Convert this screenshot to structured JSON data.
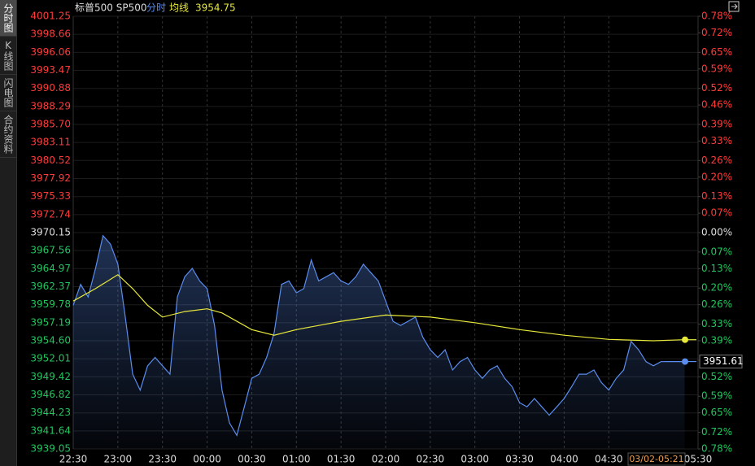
{
  "sidebar": {
    "tabs": [
      "分时图",
      "K线图",
      "闪电图",
      "合约资料"
    ]
  },
  "chart_data": {
    "type": "line",
    "title": "标普500 SP500",
    "ma_value": 3954.75,
    "date_label": "03/02-05:21",
    "xlim": [
      "22:30",
      "05:30"
    ],
    "xticks": [
      "22:30",
      "23:00",
      "23:30",
      "00:00",
      "00:30",
      "01:00",
      "01:30",
      "02:00",
      "02:30",
      "03:00",
      "03:30",
      "04:00",
      "04:30",
      "05:30"
    ],
    "ylim": [
      3939.05,
      4001.25
    ],
    "yticks": [
      4001.25,
      3998.66,
      3996.06,
      3993.47,
      3990.88,
      3988.29,
      {
        "value": 3985.7,
        "label": "3985.70"
      },
      3983.11,
      3980.52,
      3977.92,
      3975.33,
      3972.74,
      3970.15,
      3967.56,
      3964.97,
      3962.37,
      3959.78,
      3957.19,
      {
        "value": 3954.6,
        "label": "3954.60"
      },
      3952.01,
      3949.42,
      3946.82,
      3944.23,
      3941.64,
      3939.05
    ],
    "y2lim": [
      -0.78,
      0.78
    ],
    "y2ticks": [
      {
        "value": 0.78,
        "label": "0.78%"
      },
      {
        "value": 0.72,
        "label": "0.72%"
      },
      {
        "value": 0.65,
        "label": "0.65%"
      },
      {
        "value": 0.59,
        "label": "0.59%"
      },
      {
        "value": 0.52,
        "label": "0.52%"
      },
      {
        "value": 0.46,
        "label": "0.46%"
      },
      {
        "value": 0.39,
        "label": "0.39%"
      },
      {
        "value": 0.33,
        "label": "0.33%"
      },
      {
        "value": 0.26,
        "label": "0.26%"
      },
      {
        "value": 0.2,
        "label": "0.20%"
      },
      {
        "value": 0.13,
        "label": "0.13%"
      },
      {
        "value": 0.07,
        "label": "0.07%"
      },
      {
        "value": 0,
        "label": "0.00%"
      },
      {
        "value": -0.07,
        "label": "0.07%"
      },
      {
        "value": -0.13,
        "label": "0.13%"
      },
      {
        "value": -0.2,
        "label": "0.20%"
      },
      {
        "value": -0.26,
        "label": "0.26%"
      },
      {
        "value": -0.33,
        "label": "0.33%"
      },
      {
        "value": -0.39,
        "label": "0.39%"
      },
      {
        "value": -0.46,
        "label": "0.46%"
      },
      {
        "value": -0.52,
        "label": "0.52%"
      },
      {
        "value": -0.59,
        "label": "0.59%"
      },
      {
        "value": -0.65,
        "label": "0.65%"
      },
      {
        "value": -0.72,
        "label": "0.72%"
      },
      {
        "value": -0.78,
        "label": "0.78%"
      }
    ],
    "grid": true,
    "series": [
      {
        "name": "分时",
        "color": "#5b8def",
        "x": [
          "22:30",
          "22:35",
          "22:40",
          "22:45",
          "22:50",
          "22:55",
          "23:00",
          "23:05",
          "23:10",
          "23:15",
          "23:20",
          "23:25",
          "23:30",
          "23:35",
          "23:40",
          "23:45",
          "23:50",
          "23:55",
          "00:00",
          "00:05",
          "00:10",
          "00:15",
          "00:20",
          "00:25",
          "00:30",
          "00:35",
          "00:40",
          "00:45",
          "00:50",
          "00:55",
          "01:00",
          "01:05",
          "01:10",
          "01:15",
          "01:20",
          "01:25",
          "01:30",
          "01:35",
          "01:40",
          "01:45",
          "01:50",
          "01:55",
          "02:00",
          "02:05",
          "02:10",
          "02:15",
          "02:20",
          "02:25",
          "02:30",
          "02:35",
          "02:40",
          "02:45",
          "02:50",
          "02:55",
          "03:00",
          "03:05",
          "03:10",
          "03:15",
          "03:20",
          "03:25",
          "03:30",
          "03:35",
          "03:40",
          "03:45",
          "03:50",
          "03:55",
          "04:00",
          "04:05",
          "04:10",
          "04:15",
          "04:20",
          "04:25",
          "04:30",
          "04:35",
          "04:40",
          "04:45",
          "04:50",
          "04:55",
          "05:00",
          "05:05",
          "05:10",
          "05:15",
          "05:21"
        ],
        "values": [
          3959.7,
          3962.7,
          3960.9,
          3965.0,
          3969.7,
          3968.5,
          3965.6,
          3958.0,
          3949.8,
          3947.5,
          3951.0,
          3952.2,
          3951.0,
          3949.8,
          3960.9,
          3963.8,
          3965.0,
          3963.2,
          3962.1,
          3956.8,
          3947.5,
          3942.8,
          3941.0,
          3945.1,
          3949.2,
          3949.8,
          3952.2,
          3955.7,
          3962.7,
          3963.2,
          3961.5,
          3962.1,
          3966.2,
          3963.2,
          3963.8,
          3964.4,
          3963.2,
          3962.7,
          3963.8,
          3965.6,
          3964.4,
          3963.2,
          3960.3,
          3957.4,
          3956.8,
          3957.4,
          3958.0,
          3955.1,
          3953.3,
          3952.2,
          3953.3,
          3950.4,
          3951.6,
          3952.2,
          3950.4,
          3949.2,
          3950.4,
          3951.0,
          3949.2,
          3948.0,
          3945.7,
          3945.1,
          3946.3,
          3945.1,
          3943.9,
          3945.1,
          3946.3,
          3948.0,
          3949.8,
          3949.8,
          3950.4,
          3948.6,
          3947.5,
          3949.2,
          3950.4,
          3954.5,
          3953.3,
          3951.6,
          3951.0,
          3951.6,
          3951.61,
          3951.61,
          3951.61
        ]
      },
      {
        "name": "均线",
        "color": "#e8e83a",
        "x": [
          "22:30",
          "22:45",
          "23:00",
          "23:10",
          "23:20",
          "23:30",
          "23:45",
          "00:00",
          "00:10",
          "00:30",
          "00:45",
          "01:00",
          "01:30",
          "02:00",
          "02:30",
          "03:00",
          "03:30",
          "04:00",
          "04:30",
          "05:00",
          "05:21"
        ],
        "values": [
          3960.3,
          3962.1,
          3964.1,
          3962.1,
          3959.7,
          3958.0,
          3958.8,
          3959.2,
          3958.6,
          3956.2,
          3955.4,
          3956.2,
          3957.4,
          3958.3,
          3958.0,
          3957.2,
          3956.2,
          3955.4,
          3954.8,
          3954.6,
          3954.75
        ]
      }
    ]
  }
}
